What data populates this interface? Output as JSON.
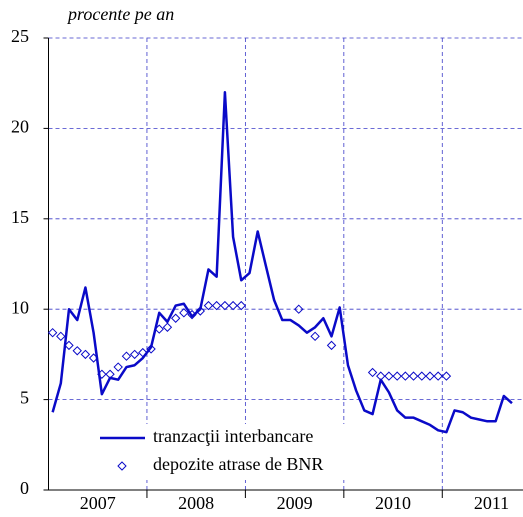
{
  "chart_data": {
    "type": "line",
    "subtitle": "procente pe an",
    "x": [
      2007.042,
      2007.125,
      2007.208,
      2007.292,
      2007.375,
      2007.458,
      2007.542,
      2007.625,
      2007.708,
      2007.792,
      2007.875,
      2007.958,
      2008.042,
      2008.125,
      2008.208,
      2008.292,
      2008.375,
      2008.458,
      2008.542,
      2008.625,
      2008.708,
      2008.792,
      2008.875,
      2008.958,
      2009.042,
      2009.125,
      2009.208,
      2009.292,
      2009.375,
      2009.458,
      2009.542,
      2009.625,
      2009.708,
      2009.792,
      2009.875,
      2009.958,
      2010.042,
      2010.125,
      2010.208,
      2010.292,
      2010.375,
      2010.458,
      2010.542,
      2010.625,
      2010.708,
      2010.792,
      2010.875,
      2010.958,
      2011.042,
      2011.125,
      2011.208,
      2011.292,
      2011.375,
      2011.458,
      2011.542,
      2011.625,
      2011.708
    ],
    "series": [
      {
        "name": "tranzacţii interbancare",
        "color": "#0a0ac8",
        "mode": "line",
        "values": [
          4.3,
          5.9,
          10.0,
          9.4,
          11.2,
          8.7,
          5.3,
          6.2,
          6.1,
          6.8,
          6.9,
          7.3,
          7.9,
          9.8,
          9.3,
          10.2,
          10.3,
          9.6,
          10.0,
          12.2,
          11.8,
          22.0,
          14.0,
          11.6,
          12.0,
          14.3,
          12.4,
          10.5,
          9.4,
          9.4,
          9.1,
          8.7,
          9.0,
          9.5,
          8.5,
          10.1,
          6.9,
          5.5,
          4.4,
          4.2,
          6.1,
          5.4,
          4.4,
          4.0,
          4.0,
          3.8,
          3.6,
          3.3,
          3.2,
          4.4,
          4.3,
          4.0,
          3.9,
          3.8,
          3.8,
          5.2,
          4.8
        ]
      },
      {
        "name": "depozite atrase de BNR",
        "color": "#0a0ac8",
        "mode": "markers",
        "values": [
          8.7,
          8.5,
          8.0,
          7.7,
          7.5,
          7.3,
          6.4,
          6.4,
          6.8,
          7.4,
          7.5,
          7.6,
          7.8,
          8.9,
          9.0,
          9.5,
          9.8,
          9.7,
          9.9,
          10.2,
          10.2,
          10.2,
          10.2,
          10.2,
          null,
          null,
          null,
          null,
          null,
          null,
          10.0,
          null,
          8.5,
          null,
          8.0,
          null,
          null,
          null,
          null,
          6.5,
          6.3,
          6.3,
          6.3,
          6.3,
          6.3,
          6.3,
          6.3,
          6.3,
          6.3,
          null,
          null,
          null,
          null,
          null,
          null,
          null,
          null
        ]
      }
    ],
    "xlim": [
      2007,
      2011.82
    ],
    "xticks": [
      {
        "value": 2007.5,
        "label": "2007"
      },
      {
        "value": 2008.5,
        "label": "2008"
      },
      {
        "value": 2009.5,
        "label": "2009"
      },
      {
        "value": 2010.5,
        "label": "2010"
      },
      {
        "value": 2011.5,
        "label": "2011"
      }
    ],
    "ylim": [
      0,
      25
    ],
    "yticks": [
      0,
      5,
      10,
      15,
      20,
      25
    ],
    "grid": true
  }
}
